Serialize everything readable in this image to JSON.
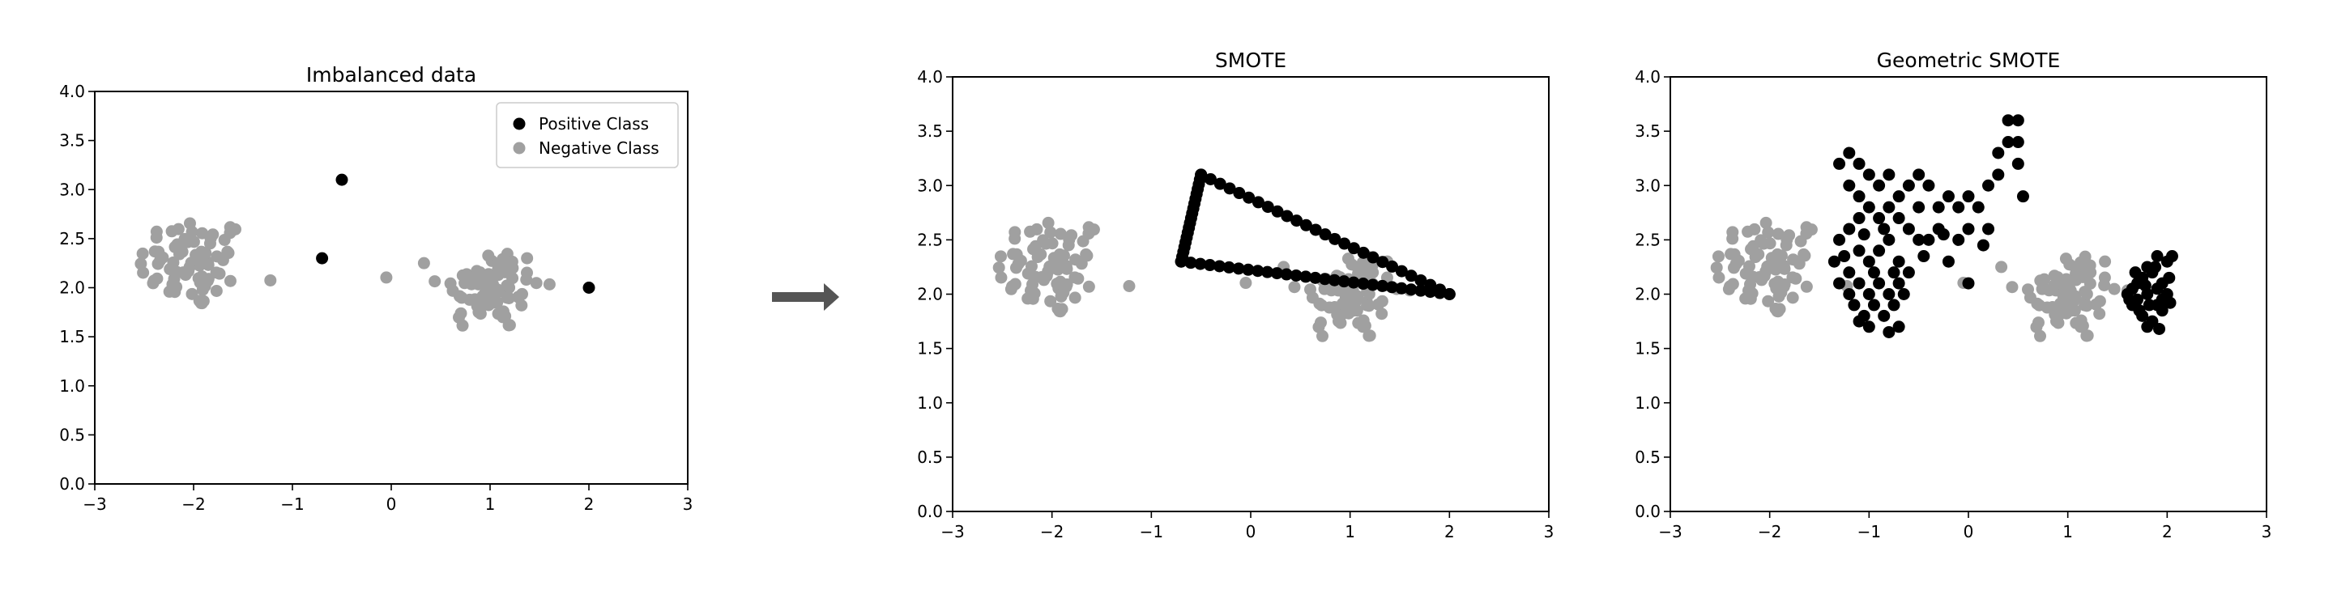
{
  "colors": {
    "positive": "#000000",
    "negative": "#a0a0a0",
    "arrow": "#555555",
    "axis": "#000000"
  },
  "arrow_icon": "right-arrow-icon",
  "chart_data": [
    {
      "type": "scatter",
      "title": "Imbalanced data",
      "xlim": [
        -3,
        3
      ],
      "ylim": [
        0,
        4
      ],
      "xticks": [
        -3,
        -2,
        -1,
        0,
        1,
        2,
        3
      ],
      "xtick_labels": [
        "−3",
        "−2",
        "−1",
        "0",
        "1",
        "2",
        "3"
      ],
      "yticks": [
        0,
        0.5,
        1,
        1.5,
        2,
        2.5,
        3,
        3.5,
        4
      ],
      "ytick_labels": [
        "0.0",
        "0.5",
        "1.0",
        "1.5",
        "2.0",
        "2.5",
        "3.0",
        "3.5",
        "4.0"
      ],
      "legend": {
        "placement": "top-right",
        "entries": [
          "Positive Class",
          "Negative Class"
        ]
      },
      "series": [
        {
          "name": "Positive Class",
          "color": "#000000",
          "points": [
            [
              -0.7,
              2.3
            ],
            [
              -0.5,
              3.1
            ],
            [
              2.0,
              2.0
            ]
          ]
        },
        {
          "name": "Negative Class",
          "color": "#a0a0a0",
          "cluster_points": "negative"
        }
      ]
    },
    {
      "type": "scatter",
      "title": "SMOTE",
      "xlim": [
        -3,
        3
      ],
      "ylim": [
        0,
        4
      ],
      "xticks": [
        -3,
        -2,
        -1,
        0,
        1,
        2,
        3
      ],
      "xtick_labels": [
        "−3",
        "−2",
        "−1",
        "0",
        "1",
        "2",
        "3"
      ],
      "yticks": [
        0,
        0.5,
        1,
        1.5,
        2,
        2.5,
        3,
        3.5,
        4
      ],
      "ytick_labels": [
        "0.0",
        "0.5",
        "1.0",
        "1.5",
        "2.0",
        "2.5",
        "3.0",
        "3.5",
        "4.0"
      ],
      "series": [
        {
          "color": "#a0a0a0",
          "cluster_points": "negative"
        },
        {
          "color": "#000000",
          "segments": [
            [
              [
                -0.7,
                2.3
              ],
              [
                -0.5,
                3.1
              ]
            ],
            [
              [
                -0.5,
                3.1
              ],
              [
                2.0,
                2.0
              ]
            ],
            [
              [
                -0.7,
                2.3
              ],
              [
                2.0,
                2.0
              ]
            ]
          ],
          "points_per_segment": [
            18,
            26,
            28
          ]
        }
      ]
    },
    {
      "type": "scatter",
      "title": "Geometric SMOTE",
      "xlim": [
        -3,
        3
      ],
      "ylim": [
        0,
        4
      ],
      "xticks": [
        -3,
        -2,
        -1,
        0,
        1,
        2,
        3
      ],
      "xtick_labels": [
        "−3",
        "−2",
        "−1",
        "0",
        "1",
        "2",
        "3"
      ],
      "yticks": [
        0,
        0.5,
        1,
        1.5,
        2,
        2.5,
        3,
        3.5,
        4
      ],
      "ytick_labels": [
        "0.0",
        "0.5",
        "1.0",
        "1.5",
        "2.0",
        "2.5",
        "3.0",
        "3.5",
        "4.0"
      ],
      "series": [
        {
          "color": "#a0a0a0",
          "cluster_points": "negative"
        },
        {
          "color": "#000000",
          "points": [
            [
              -1.3,
              3.2
            ],
            [
              -1.2,
              3.3
            ],
            [
              -1.1,
              3.2
            ],
            [
              -1.2,
              3.0
            ],
            [
              -1.1,
              2.9
            ],
            [
              -1.0,
              3.1
            ],
            [
              -0.9,
              3.0
            ],
            [
              -0.8,
              3.1
            ],
            [
              -0.7,
              2.9
            ],
            [
              -0.6,
              3.0
            ],
            [
              -0.5,
              3.1
            ],
            [
              -0.4,
              3.0
            ],
            [
              -0.5,
              2.8
            ],
            [
              -0.3,
              2.8
            ],
            [
              -0.2,
              2.9
            ],
            [
              -0.1,
              2.8
            ],
            [
              0.0,
              2.9
            ],
            [
              0.1,
              2.8
            ],
            [
              0.2,
              3.0
            ],
            [
              0.3,
              3.1
            ],
            [
              0.3,
              3.3
            ],
            [
              0.4,
              3.4
            ],
            [
              0.4,
              3.6
            ],
            [
              0.5,
              3.6
            ],
            [
              0.5,
              3.4
            ],
            [
              0.5,
              3.2
            ],
            [
              0.55,
              2.9
            ],
            [
              0.2,
              2.6
            ],
            [
              0.0,
              2.6
            ],
            [
              -0.1,
              2.5
            ],
            [
              -0.2,
              2.3
            ],
            [
              -0.3,
              2.6
            ],
            [
              -0.4,
              2.5
            ],
            [
              -0.5,
              2.5
            ],
            [
              -0.6,
              2.6
            ],
            [
              -0.7,
              2.7
            ],
            [
              -0.8,
              2.8
            ],
            [
              -0.9,
              2.7
            ],
            [
              -1.0,
              2.8
            ],
            [
              -1.1,
              2.7
            ],
            [
              -1.2,
              2.6
            ],
            [
              -1.3,
              2.5
            ],
            [
              -1.35,
              2.3
            ],
            [
              -1.3,
              2.1
            ],
            [
              -1.2,
              2.2
            ],
            [
              -1.1,
              2.4
            ],
            [
              -1.0,
              2.3
            ],
            [
              -0.9,
              2.4
            ],
            [
              -0.8,
              2.5
            ],
            [
              -0.7,
              2.3
            ],
            [
              -0.6,
              2.2
            ],
            [
              -0.7,
              2.1
            ],
            [
              -0.8,
              2.0
            ],
            [
              -0.9,
              2.1
            ],
            [
              -1.0,
              2.0
            ],
            [
              -1.1,
              2.1
            ],
            [
              -1.2,
              2.0
            ],
            [
              -1.15,
              1.9
            ],
            [
              -1.05,
              1.8
            ],
            [
              -0.95,
              1.9
            ],
            [
              -0.85,
              1.8
            ],
            [
              -0.75,
              1.9
            ],
            [
              -0.7,
              1.7
            ],
            [
              -0.8,
              1.65
            ],
            [
              -1.0,
              1.7
            ],
            [
              -1.1,
              1.75
            ],
            [
              -0.65,
              2.0
            ],
            [
              -0.75,
              2.2
            ],
            [
              -0.95,
              2.2
            ],
            [
              -1.25,
              2.35
            ],
            [
              -1.05,
              2.55
            ],
            [
              -0.85,
              2.6
            ],
            [
              -0.45,
              2.35
            ],
            [
              0.0,
              2.1
            ],
            [
              -0.25,
              2.55
            ],
            [
              0.15,
              2.45
            ],
            [
              1.6,
              2.0
            ],
            [
              1.65,
              1.9
            ],
            [
              1.7,
              2.1
            ],
            [
              1.75,
              1.8
            ],
            [
              1.8,
              2.0
            ],
            [
              1.85,
              2.2
            ],
            [
              1.9,
              1.9
            ],
            [
              1.95,
              2.1
            ],
            [
              2.0,
              2.0
            ],
            [
              2.0,
              2.3
            ],
            [
              1.9,
              2.35
            ],
            [
              1.8,
              2.25
            ],
            [
              1.7,
              1.95
            ],
            [
              1.75,
              2.15
            ],
            [
              1.85,
              1.75
            ],
            [
              1.95,
              1.85
            ],
            [
              2.02,
              2.15
            ],
            [
              1.65,
              2.05
            ],
            [
              1.8,
              1.7
            ],
            [
              1.9,
              2.05
            ],
            [
              1.95,
              1.95
            ],
            [
              1.72,
              1.85
            ],
            [
              1.88,
              2.25
            ],
            [
              2.03,
              1.92
            ],
            [
              1.62,
              1.95
            ],
            [
              1.78,
              2.08
            ],
            [
              1.92,
              1.68
            ],
            [
              2.05,
              2.35
            ],
            [
              1.82,
              1.9
            ],
            [
              1.68,
              2.2
            ]
          ]
        }
      ]
    }
  ]
}
